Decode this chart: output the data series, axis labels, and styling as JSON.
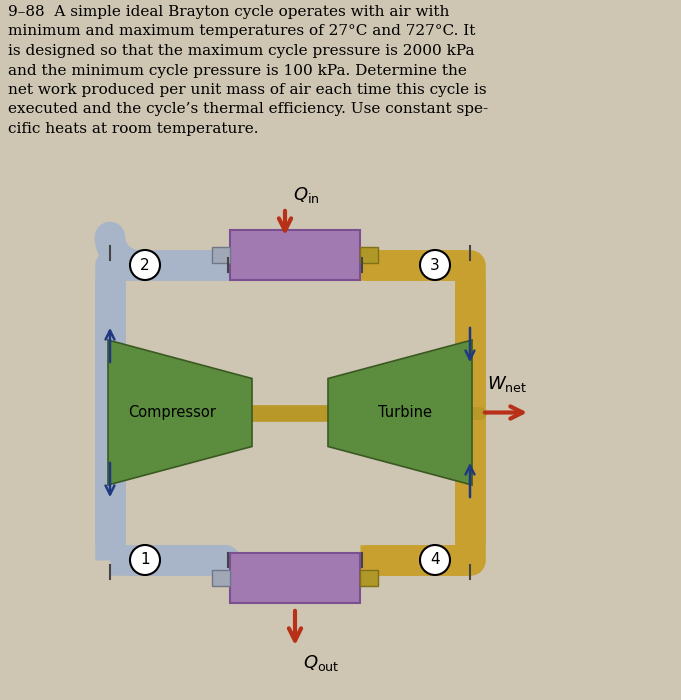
{
  "title_text": "9–88  A simple ideal Brayton cycle operates with air with\nminimum and maximum temperatures of 27°C and 727°C. It\nis designed so that the maximum cycle pressure is 2000 kPa\nand the minimum cycle pressure is 100 kPa. Determine the\nnet work produced per unit mass of air each time this cycle is\nexecuted and the cycle’s thermal efficiency. Use constant spe-\ncific heats at room temperature.",
  "bg_color": "#cec5b2",
  "compressor_color": "#5c8c3e",
  "turbine_color": "#5c8c3e",
  "heat_exchanger_color": "#a07ab0",
  "hx_dark": "#7a5090",
  "pipe_color_cold": "#a8b4c8",
  "pipe_color_cold_dark": "#8090a8",
  "pipe_color_hot": "#c8a030",
  "pipe_color_hot_dark": "#a07818",
  "shaft_color": "#b89828",
  "arrow_q_color": "#b83018",
  "arrow_flow_color": "#203880",
  "arrow_wnet_color": "#b83018",
  "node_bg": "white",
  "node_edge": "black",
  "label_compressor": "Compressor",
  "label_turbine": "Turbine",
  "fig_width": 6.81,
  "fig_height": 7.0,
  "dpi": 100
}
